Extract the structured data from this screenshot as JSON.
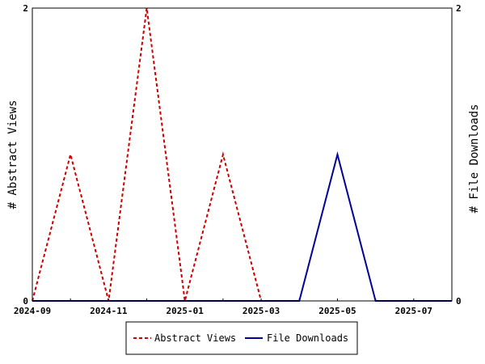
{
  "chart_data": {
    "type": "line",
    "xlabel": "",
    "ylabel": "# Abstract Views",
    "y2label": "# File Downloads",
    "x": [
      "2024-09",
      "2024-10",
      "2024-11",
      "2024-12",
      "2025-01",
      "2025-02",
      "2025-03",
      "2025-04",
      "2025-05",
      "2025-06",
      "2025-07",
      "2025-08"
    ],
    "x_tick_labels": [
      "2024-09",
      "2024-11",
      "2025-01",
      "2025-03",
      "2025-05",
      "2025-07"
    ],
    "ylim": [
      0,
      2
    ],
    "y2lim": [
      0,
      2
    ],
    "y_tick_labels": [
      "0",
      "2"
    ],
    "y2_tick_labels": [
      "0",
      "2"
    ],
    "legend_position": "bottom",
    "series": [
      {
        "name": "Abstract Views",
        "axis": "left",
        "color": "#cc0000",
        "dash": "dashed",
        "values": [
          0,
          1,
          0,
          2,
          0,
          1,
          0,
          0,
          null,
          null,
          null,
          null
        ]
      },
      {
        "name": "File Downloads",
        "axis": "right",
        "color": "#000099",
        "dash": "solid",
        "values": [
          0,
          0,
          0,
          0,
          0,
          0,
          0,
          0,
          1,
          0,
          0,
          0
        ]
      }
    ]
  }
}
